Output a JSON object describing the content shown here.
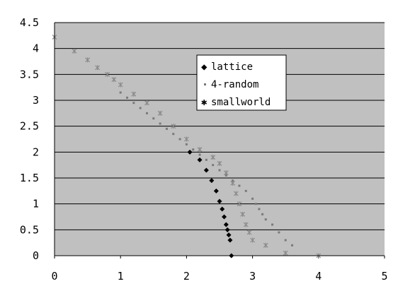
{
  "chart_data": {
    "type": "scatter",
    "title": "",
    "xlabel": "",
    "ylabel": "",
    "xlim": [
      0,
      5
    ],
    "ylim": [
      0,
      4.5
    ],
    "x_ticks": [
      "0",
      "1",
      "2",
      "3",
      "4",
      "5"
    ],
    "y_ticks": [
      "0",
      "0.5",
      "1",
      "1.5",
      "2",
      "2.5",
      "3",
      "3.5",
      "4",
      "4.5"
    ],
    "grid": "horizontal",
    "plot_background": "#c0c0c0",
    "legend_position": "top-center",
    "series": [
      {
        "name": "lattice",
        "marker": "diamond",
        "color": "#000000",
        "points": [
          [
            2.05,
            2.0
          ],
          [
            2.2,
            1.85
          ],
          [
            2.3,
            1.65
          ],
          [
            2.38,
            1.45
          ],
          [
            2.45,
            1.25
          ],
          [
            2.5,
            1.05
          ],
          [
            2.54,
            0.9
          ],
          [
            2.57,
            0.75
          ],
          [
            2.6,
            0.6
          ],
          [
            2.62,
            0.5
          ],
          [
            2.64,
            0.4
          ],
          [
            2.66,
            0.3
          ],
          [
            2.68,
            0.0
          ]
        ]
      },
      {
        "name": "4-random",
        "marker": "dot",
        "color": "#7a7a7a",
        "points": [
          [
            1.0,
            3.15
          ],
          [
            1.1,
            3.05
          ],
          [
            1.2,
            2.95
          ],
          [
            1.3,
            2.85
          ],
          [
            1.4,
            2.75
          ],
          [
            1.5,
            2.65
          ],
          [
            1.6,
            2.55
          ],
          [
            1.7,
            2.45
          ],
          [
            1.8,
            2.35
          ],
          [
            1.9,
            2.25
          ],
          [
            2.0,
            2.15
          ],
          [
            2.1,
            2.05
          ],
          [
            2.2,
            1.95
          ],
          [
            2.3,
            1.85
          ],
          [
            2.4,
            1.75
          ],
          [
            2.5,
            1.65
          ],
          [
            2.6,
            1.55
          ],
          [
            2.7,
            1.45
          ],
          [
            2.8,
            1.35
          ],
          [
            2.9,
            1.25
          ],
          [
            3.0,
            1.1
          ],
          [
            3.05,
            1.0
          ],
          [
            3.1,
            0.9
          ],
          [
            3.15,
            0.8
          ],
          [
            3.2,
            0.7
          ],
          [
            3.3,
            0.6
          ],
          [
            3.4,
            0.45
          ],
          [
            3.5,
            0.3
          ],
          [
            3.6,
            0.2
          ]
        ]
      },
      {
        "name": "smallworld",
        "marker": "star",
        "color": "#8a8a8a",
        "points": [
          [
            0.0,
            4.22
          ],
          [
            0.3,
            3.95
          ],
          [
            0.5,
            3.78
          ],
          [
            0.65,
            3.63
          ],
          [
            0.8,
            3.5
          ],
          [
            0.9,
            3.4
          ],
          [
            1.0,
            3.3
          ],
          [
            1.2,
            3.12
          ],
          [
            1.4,
            2.95
          ],
          [
            1.6,
            2.75
          ],
          [
            1.8,
            2.5
          ],
          [
            2.0,
            2.25
          ],
          [
            2.2,
            2.05
          ],
          [
            2.4,
            1.9
          ],
          [
            2.5,
            1.78
          ],
          [
            2.6,
            1.6
          ],
          [
            2.7,
            1.4
          ],
          [
            2.75,
            1.2
          ],
          [
            2.8,
            1.0
          ],
          [
            2.85,
            0.8
          ],
          [
            2.9,
            0.6
          ],
          [
            2.95,
            0.45
          ],
          [
            3.0,
            0.3
          ],
          [
            3.2,
            0.2
          ],
          [
            3.5,
            0.05
          ],
          [
            4.0,
            0.0
          ]
        ]
      }
    ]
  }
}
